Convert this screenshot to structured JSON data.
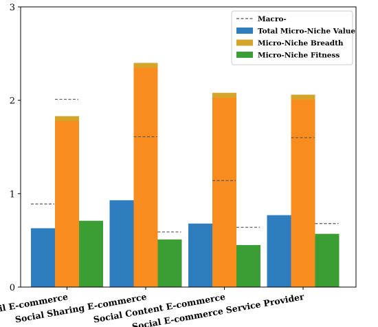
{
  "chart_data": {
    "type": "bar",
    "categories": [
      "Social Retail E-commerce",
      "Social Sharing E-commerce",
      "Social Content E-commerce",
      "Social E-commerce Service Provider"
    ],
    "series": [
      {
        "name": "Total Micro-Niche Value",
        "values": [
          0.63,
          0.93,
          0.68,
          0.77
        ]
      },
      {
        "name": "Micro-Niche Breadth",
        "values": [
          1.83,
          2.4,
          2.08,
          2.06
        ]
      },
      {
        "name": "Micro-Niche Fitness",
        "values": [
          0.71,
          0.51,
          0.45,
          0.57
        ]
      }
    ],
    "macro": {
      "name": "Macro-",
      "segments": [
        {
          "category": 0,
          "value": 0.89,
          "side": "left"
        },
        {
          "category": 0,
          "value": 2.01,
          "side": "center"
        },
        {
          "category": 1,
          "value": 1.61,
          "side": "center"
        },
        {
          "category": 1,
          "value": 0.59,
          "side": "right"
        },
        {
          "category": 2,
          "value": 1.14,
          "side": "center"
        },
        {
          "category": 2,
          "value": 0.64,
          "side": "right"
        },
        {
          "category": 3,
          "value": 1.6,
          "side": "center"
        },
        {
          "category": 3,
          "value": 0.68,
          "side": "right"
        }
      ]
    },
    "ylim": [
      0,
      3
    ],
    "yticks": [
      "0",
      "1",
      "2",
      "3"
    ],
    "legend_position": "top-right",
    "grid": false,
    "colors": {
      "total": "#2e7ebf",
      "breadth_edge": "#d4a52a",
      "breadth_fill": "#f98c1e",
      "fitness": "#3a9e35",
      "macro": "#555555"
    }
  }
}
